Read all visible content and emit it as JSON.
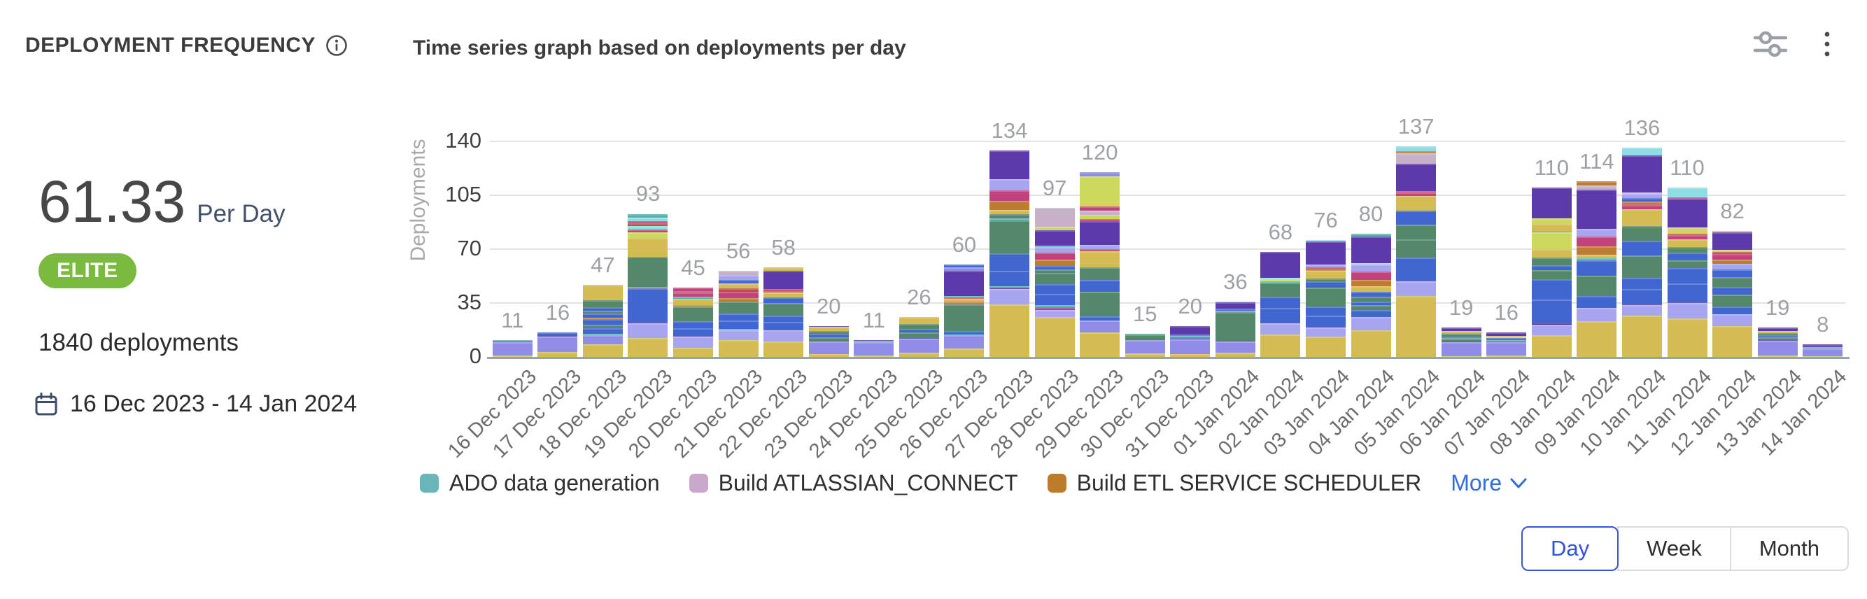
{
  "header": {
    "title": "DEPLOYMENT FREQUENCY",
    "subtitle": "Time series graph based on deployments per day",
    "action_icons": [
      "filter-sliders-icon",
      "kebab-menu-icon"
    ]
  },
  "summary": {
    "rate": "61.33",
    "rate_unit": "Per Day",
    "badge": "ELITE",
    "badge_color": "#79ba3f",
    "deployments_text": "1840 deployments",
    "date_range": "16 Dec 2023 - 14 Jan 2024"
  },
  "chart_data": {
    "type": "bar",
    "stacked": true,
    "title": "Time series graph based on deployments per day",
    "ylabel": "Deployments",
    "ylim": [
      0,
      140
    ],
    "yticks": [
      0,
      35,
      70,
      105,
      140
    ],
    "grid": true,
    "legend_position": "bottom",
    "categories": [
      "16 Dec 2023",
      "17 Dec 2023",
      "18 Dec 2023",
      "19 Dec 2023",
      "20 Dec 2023",
      "21 Dec 2023",
      "22 Dec 2023",
      "23 Dec 2023",
      "24 Dec 2023",
      "25 Dec 2023",
      "26 Dec 2023",
      "27 Dec 2023",
      "28 Dec 2023",
      "29 Dec 2023",
      "30 Dec 2023",
      "31 Dec 2023",
      "01 Jan 2024",
      "02 Jan 2024",
      "03 Jan 2024",
      "04 Jan 2024",
      "05 Jan 2024",
      "06 Jan 2024",
      "07 Jan 2024",
      "08 Jan 2024",
      "09 Jan 2024",
      "10 Jan 2024",
      "11 Jan 2024",
      "12 Jan 2024",
      "13 Jan 2024",
      "14 Jan 2024"
    ],
    "totals": [
      11,
      16,
      47,
      93,
      45,
      56,
      58,
      20,
      11,
      26,
      60,
      134,
      97,
      120,
      15,
      20,
      36,
      68,
      76,
      80,
      137,
      19,
      16,
      110,
      114,
      136,
      110,
      82,
      19,
      8
    ],
    "legend": [
      {
        "label": "ADO data generation",
        "color": "#68b6b9"
      },
      {
        "label": "Build ATLASSIAN_CONNECT",
        "color": "#c9a8cc"
      },
      {
        "label": "Build ETL SERVICE SCHEDULER",
        "color": "#bd7c2b"
      }
    ],
    "more_label": "More",
    "palette": {
      "Y": "#d4bc52",
      "P": "#8f8de8",
      "L": "#a7a5f0",
      "B": "#4066d0",
      "G": "#54886a",
      "V": "#5d3aac",
      "M": "#c2427e",
      "O": "#c07b33",
      "T": "#4fb2ad",
      "C": "#8cdee4",
      "K": "#ccd95c",
      "U": "#c7b1c9",
      "R": "#c14b45",
      "D": "#46309a"
    },
    "stacks": [
      [
        [
          "Y",
          1
        ],
        [
          "P",
          8.5
        ],
        [
          "D",
          0.4
        ],
        [
          "T",
          1.1
        ]
      ],
      [
        [
          "Y",
          3
        ],
        [
          "P",
          10
        ],
        [
          "D",
          0.5
        ],
        [
          "B",
          2.5
        ]
      ],
      [
        [
          "Y",
          7
        ],
        [
          "P",
          5.5
        ],
        [
          "T",
          0.5
        ],
        [
          "B",
          3.5
        ],
        [
          "G",
          2
        ],
        [
          "B",
          3
        ],
        [
          "O",
          0.8
        ],
        [
          "B",
          2.5
        ],
        [
          "G",
          1.5
        ],
        [
          "B",
          2
        ],
        [
          "G",
          4
        ],
        [
          "Y",
          9
        ]
      ],
      [
        [
          "Y",
          10
        ],
        [
          "L",
          8
        ],
        [
          "D",
          0.6
        ],
        [
          "B",
          18
        ],
        [
          "O",
          1
        ],
        [
          "G",
          16
        ],
        [
          "Y",
          10
        ],
        [
          "K",
          3
        ],
        [
          "M",
          1.5
        ],
        [
          "C",
          2
        ],
        [
          "R",
          1.5
        ],
        [
          "M",
          1
        ],
        [
          "C",
          2
        ],
        [
          "T",
          2
        ]
      ],
      [
        [
          "Y",
          6
        ],
        [
          "L",
          7
        ],
        [
          "D",
          0.5
        ],
        [
          "B",
          5
        ],
        [
          "B",
          4.5
        ],
        [
          "G",
          9
        ],
        [
          "O",
          1.2
        ],
        [
          "Y",
          4
        ],
        [
          "T",
          1
        ],
        [
          "M",
          3
        ],
        [
          "R",
          1
        ],
        [
          "M",
          2
        ]
      ],
      [
        [
          "Y",
          10
        ],
        [
          "L",
          6
        ],
        [
          "T",
          0.8
        ],
        [
          "B",
          5
        ],
        [
          "B",
          4
        ],
        [
          "G",
          7
        ],
        [
          "O",
          2
        ],
        [
          "M",
          4
        ],
        [
          "R",
          2
        ],
        [
          "Y",
          3
        ],
        [
          "B",
          2
        ],
        [
          "L",
          3
        ],
        [
          "U",
          2.5
        ]
      ],
      [
        [
          "Y",
          10
        ],
        [
          "L",
          7
        ],
        [
          "D",
          0.5
        ],
        [
          "B",
          5
        ],
        [
          "B",
          4
        ],
        [
          "G",
          8
        ],
        [
          "B",
          4
        ],
        [
          "Y",
          3
        ],
        [
          "M",
          1
        ],
        [
          "R",
          1
        ],
        [
          "V",
          12
        ],
        [
          "Y",
          2
        ]
      ],
      [
        [
          "Y",
          2
        ],
        [
          "P",
          8
        ],
        [
          "D",
          0.3
        ],
        [
          "G",
          2.5
        ],
        [
          "B",
          2
        ],
        [
          "G",
          2.2
        ],
        [
          "Y",
          2.5
        ],
        [
          "D",
          0.5
        ]
      ],
      [
        [
          "Y",
          1
        ],
        [
          "P",
          8.5
        ],
        [
          "T",
          1
        ],
        [
          "D",
          0.5
        ]
      ],
      [
        [
          "Y",
          2.5
        ],
        [
          "P",
          8
        ],
        [
          "D",
          0.4
        ],
        [
          "G",
          3.5
        ],
        [
          "B",
          2
        ],
        [
          "G",
          3
        ],
        [
          "Y",
          4
        ]
      ],
      [
        [
          "Y",
          4
        ],
        [
          "P",
          6.5
        ],
        [
          "T",
          0.5
        ],
        [
          "B",
          1.5
        ],
        [
          "G",
          13
        ],
        [
          "M",
          0.8
        ],
        [
          "O",
          0.8
        ],
        [
          "Y",
          1.2
        ],
        [
          "R",
          0.8
        ],
        [
          "T",
          0.8
        ],
        [
          "V",
          12
        ],
        [
          "P",
          2
        ],
        [
          "B",
          1.2
        ]
      ],
      [
        [
          "Y",
          24
        ],
        [
          "L",
          7
        ],
        [
          "D",
          0.6
        ],
        [
          "T",
          0.8
        ],
        [
          "B",
          7
        ],
        [
          "B",
          8
        ],
        [
          "G",
          15
        ],
        [
          "T",
          1
        ],
        [
          "G",
          2
        ],
        [
          "Y",
          2
        ],
        [
          "O",
          4
        ],
        [
          "M",
          5
        ],
        [
          "L",
          5
        ],
        [
          "V",
          13
        ]
      ],
      [
        [
          "Y",
          21
        ],
        [
          "L",
          4
        ],
        [
          "D",
          0.5
        ],
        [
          "M",
          1
        ],
        [
          "T",
          1
        ],
        [
          "B",
          6
        ],
        [
          "B",
          5
        ],
        [
          "G",
          6
        ],
        [
          "G",
          2
        ],
        [
          "B",
          2
        ],
        [
          "O",
          3
        ],
        [
          "M",
          4
        ],
        [
          "L",
          3
        ],
        [
          "T",
          0.8
        ],
        [
          "V",
          8
        ],
        [
          "K",
          2
        ],
        [
          "U",
          10
        ]
      ],
      [
        [
          "Y",
          12
        ],
        [
          "P",
          6
        ],
        [
          "B",
          2
        ],
        [
          "G",
          12
        ],
        [
          "B",
          6
        ],
        [
          "G",
          6
        ],
        [
          "Y",
          8
        ],
        [
          "R",
          1
        ],
        [
          "L",
          2
        ],
        [
          "V",
          12
        ],
        [
          "M",
          1
        ],
        [
          "K",
          2
        ],
        [
          "U",
          2
        ],
        [
          "M",
          2
        ],
        [
          "K",
          15
        ],
        [
          "P",
          2
        ]
      ],
      [
        [
          "Y",
          2
        ],
        [
          "P",
          8
        ],
        [
          "D",
          0.4
        ],
        [
          "G",
          3
        ],
        [
          "T",
          0.6
        ]
      ],
      [
        [
          "Y",
          1.5
        ],
        [
          "P",
          9
        ],
        [
          "D",
          0.4
        ],
        [
          "B",
          1
        ],
        [
          "T",
          0.8
        ],
        [
          "B",
          1
        ],
        [
          "V",
          5
        ]
      ],
      [
        [
          "Y",
          2.5
        ],
        [
          "P",
          7
        ],
        [
          "D",
          0.5
        ],
        [
          "G",
          18
        ],
        [
          "T",
          1
        ],
        [
          "B",
          1
        ],
        [
          "V",
          4
        ],
        [
          "C",
          0.6
        ]
      ],
      [
        [
          "Y",
          14
        ],
        [
          "L",
          7
        ],
        [
          "D",
          0.5
        ],
        [
          "B",
          9
        ],
        [
          "B",
          7
        ],
        [
          "G",
          9
        ],
        [
          "T",
          0.8
        ],
        [
          "K",
          1
        ],
        [
          "C",
          1
        ],
        [
          "V",
          16
        ]
      ],
      [
        [
          "Y",
          13
        ],
        [
          "L",
          6
        ],
        [
          "D",
          0.5
        ],
        [
          "B",
          7
        ],
        [
          "B",
          6
        ],
        [
          "G",
          12
        ],
        [
          "B",
          4
        ],
        [
          "G",
          2
        ],
        [
          "Y",
          5
        ],
        [
          "O",
          1
        ],
        [
          "R",
          1
        ],
        [
          "L",
          2
        ],
        [
          "V",
          15
        ],
        [
          "C",
          0.8
        ]
      ],
      [
        [
          "Y",
          16
        ],
        [
          "L",
          8
        ],
        [
          "B",
          4
        ],
        [
          "G",
          3
        ],
        [
          "B",
          2
        ],
        [
          "G",
          3
        ],
        [
          "B",
          3
        ],
        [
          "Y",
          3
        ],
        [
          "O",
          4
        ],
        [
          "M",
          5
        ],
        [
          "L",
          4
        ],
        [
          "C",
          1
        ],
        [
          "V",
          16
        ],
        [
          "T",
          1.5
        ]
      ],
      [
        [
          "Y",
          34
        ],
        [
          "L",
          8
        ],
        [
          "D",
          0.5
        ],
        [
          "B",
          13
        ],
        [
          "G",
          10
        ],
        [
          "G",
          8
        ],
        [
          "B",
          8
        ],
        [
          "Y",
          8
        ],
        [
          "M",
          2
        ],
        [
          "R",
          1
        ],
        [
          "V",
          15
        ],
        [
          "U",
          6
        ],
        [
          "O",
          1
        ],
        [
          "C",
          3
        ]
      ],
      [
        [
          "Y",
          0.6
        ],
        [
          "P",
          8
        ],
        [
          "D",
          0.4
        ],
        [
          "G",
          1.5
        ],
        [
          "T",
          0.5
        ],
        [
          "B",
          1
        ],
        [
          "G",
          1.5
        ],
        [
          "T",
          0.5
        ],
        [
          "Y",
          1
        ],
        [
          "V",
          2
        ]
      ],
      [
        [
          "Y",
          1
        ],
        [
          "P",
          9
        ],
        [
          "D",
          0.4
        ],
        [
          "T",
          1
        ],
        [
          "B",
          1
        ],
        [
          "K",
          0.5
        ],
        [
          "Y",
          1
        ],
        [
          "V",
          2.5
        ]
      ],
      [
        [
          "Y",
          12
        ],
        [
          "L",
          6
        ],
        [
          "D",
          1
        ],
        [
          "B",
          13
        ],
        [
          "B",
          11
        ],
        [
          "G",
          5
        ],
        [
          "B",
          3
        ],
        [
          "G",
          4
        ],
        [
          "Y",
          5
        ],
        [
          "K",
          9
        ],
        [
          "T",
          1
        ],
        [
          "Y",
          4
        ],
        [
          "K",
          3
        ],
        [
          "V",
          17
        ]
      ],
      [
        [
          "Y",
          18
        ],
        [
          "L",
          7
        ],
        [
          "B",
          6
        ],
        [
          "G",
          10
        ],
        [
          "B",
          8
        ],
        [
          "T",
          1
        ],
        [
          "Y",
          2
        ],
        [
          "O",
          4
        ],
        [
          "M",
          5
        ],
        [
          "L",
          4
        ],
        [
          "V",
          20
        ],
        [
          "U",
          2
        ],
        [
          "O",
          2
        ]
      ],
      [
        [
          "Y",
          22
        ],
        [
          "L",
          6
        ],
        [
          "D",
          0.5
        ],
        [
          "B",
          8
        ],
        [
          "B",
          6
        ],
        [
          "G",
          12
        ],
        [
          "B",
          8
        ],
        [
          "G",
          8
        ],
        [
          "Y",
          9
        ],
        [
          "M",
          2
        ],
        [
          "R",
          1
        ],
        [
          "O",
          1
        ],
        [
          "B",
          2
        ],
        [
          "L",
          2
        ],
        [
          "U",
          1
        ],
        [
          "V",
          20
        ],
        [
          "C",
          4
        ]
      ],
      [
        [
          "Y",
          20
        ],
        [
          "L",
          8
        ],
        [
          "D",
          0.5
        ],
        [
          "B",
          10
        ],
        [
          "B",
          8
        ],
        [
          "G",
          4
        ],
        [
          "B",
          4
        ],
        [
          "G",
          3
        ],
        [
          "Y",
          4
        ],
        [
          "M",
          2
        ],
        [
          "R",
          1
        ],
        [
          "K",
          3
        ],
        [
          "V",
          15
        ],
        [
          "M",
          1
        ],
        [
          "C",
          5
        ]
      ],
      [
        [
          "Y",
          16
        ],
        [
          "L",
          6
        ],
        [
          "B",
          4
        ],
        [
          "G",
          6
        ],
        [
          "B",
          4
        ],
        [
          "G",
          5
        ],
        [
          "B",
          4
        ],
        [
          "L",
          3
        ],
        [
          "O",
          2
        ],
        [
          "M",
          3
        ],
        [
          "R",
          1
        ],
        [
          "K",
          1
        ],
        [
          "V",
          9
        ],
        [
          "Y",
          1
        ]
      ],
      [
        [
          "Y",
          1
        ],
        [
          "P",
          9
        ],
        [
          "D",
          0.4
        ],
        [
          "G",
          2
        ],
        [
          "B",
          1
        ],
        [
          "G",
          1.5
        ],
        [
          "Y",
          1.2
        ],
        [
          "V",
          2.2
        ]
      ],
      [
        [
          "Y",
          0.6
        ],
        [
          "P",
          5
        ],
        [
          "T",
          1
        ],
        [
          "D",
          0.3
        ],
        [
          "V",
          1.2
        ]
      ]
    ]
  },
  "controls": {
    "granularity": [
      {
        "label": "Day",
        "selected": true
      },
      {
        "label": "Week",
        "selected": false
      },
      {
        "label": "Month",
        "selected": false
      }
    ]
  }
}
